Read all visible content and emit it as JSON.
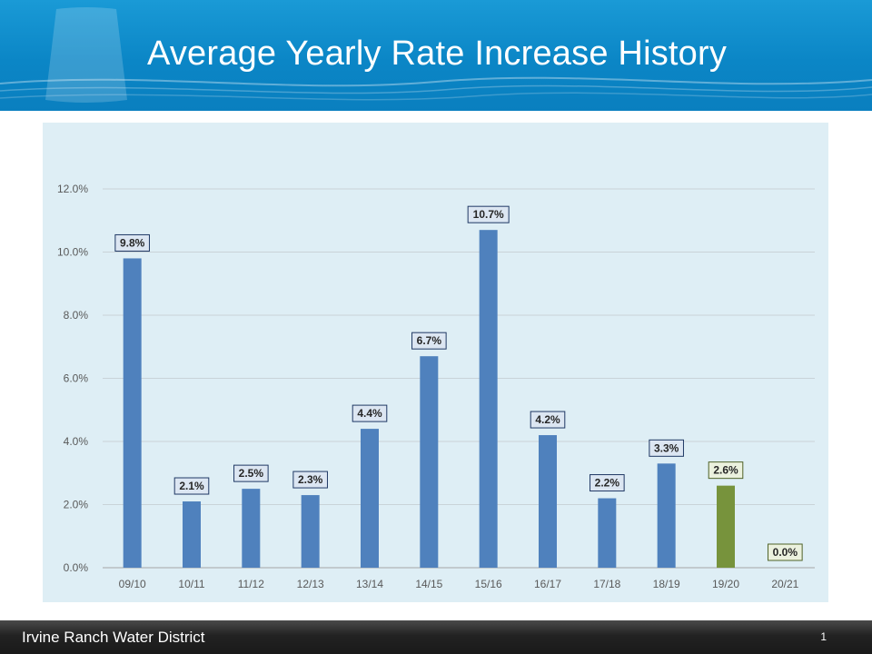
{
  "slide": {
    "title": "Average Yearly Rate Increase History",
    "organization": "Irvine Ranch Water District",
    "page_number": "1"
  },
  "colors": {
    "header_blue": "#0b86c6",
    "bar_blue": "#4f81bd",
    "bar_green": "#77933c",
    "chart_background": "#deeef5",
    "label_fill_blue": "#dce6f2",
    "label_fill_green": "#ebf1de"
  },
  "chart_data": {
    "type": "bar",
    "title": "",
    "xlabel": "",
    "ylabel": "",
    "categories": [
      "09/10",
      "10/11",
      "11/12",
      "12/13",
      "13/14",
      "14/15",
      "15/16",
      "16/17",
      "17/18",
      "18/19",
      "19/20",
      "20/21"
    ],
    "values": [
      9.8,
      2.1,
      2.5,
      2.3,
      4.4,
      6.7,
      10.7,
      4.2,
      2.2,
      3.3,
      2.6,
      0.0
    ],
    "value_labels": [
      "9.8%",
      "2.1%",
      "2.5%",
      "2.3%",
      "4.4%",
      "6.7%",
      "10.7%",
      "4.2%",
      "2.2%",
      "3.3%",
      "2.6%",
      "0.0%"
    ],
    "bar_colors": [
      "#4f81bd",
      "#4f81bd",
      "#4f81bd",
      "#4f81bd",
      "#4f81bd",
      "#4f81bd",
      "#4f81bd",
      "#4f81bd",
      "#4f81bd",
      "#4f81bd",
      "#77933c",
      "#77933c"
    ],
    "ylim": [
      0,
      12
    ],
    "yticks": [
      0,
      2,
      4,
      6,
      8,
      10,
      12
    ],
    "ytick_labels": [
      "0.0%",
      "2.0%",
      "4.0%",
      "6.0%",
      "8.0%",
      "10.0%",
      "12.0%"
    ],
    "grid": true,
    "legend": "none"
  }
}
